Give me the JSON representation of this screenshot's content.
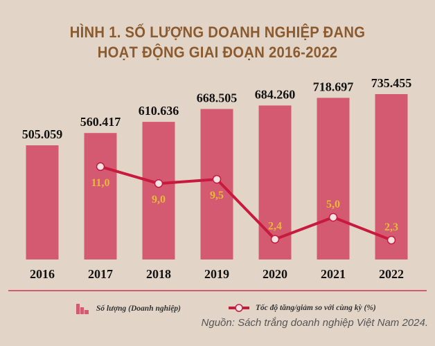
{
  "title_line1": "HÌNH 1. SỐ LƯỢNG DOANH NGHIỆP ĐANG",
  "title_line2": "HOẠT ĐỘNG GIAI ĐOẠN 2016-2022",
  "source": "Nguồn: Sách trắng doanh nghiệp Việt Nam 2024.",
  "colors": {
    "background": "#e2d5c7",
    "bar": "#d45a72",
    "line": "#c8193f",
    "line_label": "#e8b83a",
    "title": "#8b5a2e"
  },
  "chart_data": {
    "type": "bar+line",
    "categories": [
      "2016",
      "2017",
      "2018",
      "2019",
      "2020",
      "2021",
      "2022"
    ],
    "series": [
      {
        "name": "Số lượng (Doanh nghiệp)",
        "type": "bar",
        "values": [
          505059,
          560417,
          610636,
          668505,
          684260,
          718697,
          735455
        ],
        "labels": [
          "505.059",
          "560.417",
          "610.636",
          "668.505",
          "684.260",
          "718.697",
          "735.455"
        ]
      },
      {
        "name": "Tốc độ tăng/giảm so với cùng kỳ (%)",
        "type": "line",
        "values": [
          null,
          11.0,
          9.0,
          9.5,
          2.4,
          5.0,
          2.3
        ],
        "labels": [
          "",
          "11,0",
          "9,0",
          "9,5",
          "2,4",
          "5,0",
          "2,3"
        ]
      }
    ],
    "legend": "bottom",
    "grid": false
  }
}
